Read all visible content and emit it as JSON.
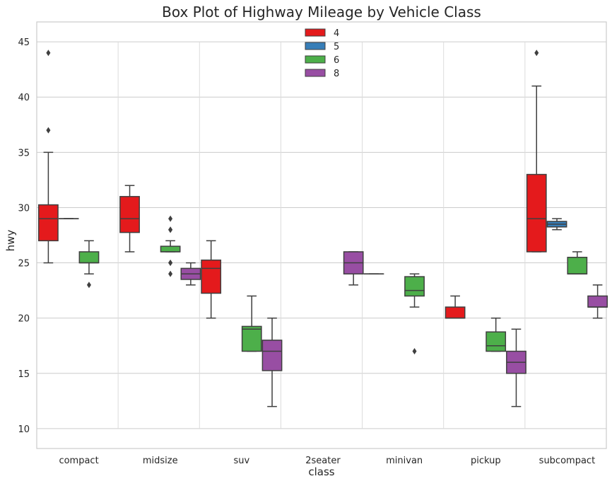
{
  "chart_data": {
    "type": "box",
    "title": "Box Plot of Highway Mileage by Vehicle Class",
    "xlabel": "class",
    "ylabel": "hwy",
    "ylim": [
      8.2,
      46.8
    ],
    "yticks": [
      10,
      15,
      20,
      25,
      30,
      35,
      40,
      45
    ],
    "grid": true,
    "legend_position": "top-center",
    "categories": [
      "compact",
      "midsize",
      "suv",
      "2seater",
      "minivan",
      "pickup",
      "subcompact"
    ],
    "series": [
      {
        "name": "4",
        "color": "#e41a1c",
        "boxes": [
          {
            "category": "compact",
            "whisker_low": 25,
            "q1": 27,
            "median": 29,
            "q3": 30.25,
            "whisker_high": 35,
            "outliers": [
              37,
              44
            ]
          },
          {
            "category": "midsize",
            "whisker_low": 26,
            "q1": 27.75,
            "median": 29,
            "q3": 31,
            "whisker_high": 32,
            "outliers": []
          },
          {
            "category": "suv",
            "whisker_low": 20,
            "q1": 22.25,
            "median": 24.5,
            "q3": 25.25,
            "whisker_high": 27,
            "outliers": []
          },
          {
            "category": "minivan",
            "whisker_low": 24,
            "q1": 24,
            "median": 24,
            "q3": 24,
            "whisker_high": 24,
            "outliers": []
          },
          {
            "category": "pickup",
            "whisker_low": 20,
            "q1": 20,
            "median": 20,
            "q3": 21,
            "whisker_high": 22,
            "outliers": []
          },
          {
            "category": "subcompact",
            "whisker_low": 26,
            "q1": 26,
            "median": 29,
            "q3": 33,
            "whisker_high": 41,
            "outliers": [
              44
            ]
          }
        ]
      },
      {
        "name": "5",
        "color": "#377eb8",
        "boxes": [
          {
            "category": "compact",
            "whisker_low": 29,
            "q1": 29,
            "median": 29,
            "q3": 29,
            "whisker_high": 29,
            "outliers": []
          },
          {
            "category": "subcompact",
            "whisker_low": 28,
            "q1": 28.25,
            "median": 28.5,
            "q3": 28.75,
            "whisker_high": 29,
            "outliers": []
          }
        ]
      },
      {
        "name": "6",
        "color": "#4daf4a",
        "boxes": [
          {
            "category": "compact",
            "whisker_low": 24,
            "q1": 25,
            "median": 25,
            "q3": 26,
            "whisker_high": 27,
            "outliers": [
              23
            ]
          },
          {
            "category": "midsize",
            "whisker_low": 26,
            "q1": 26,
            "median": 26,
            "q3": 26.5,
            "whisker_high": 27,
            "outliers": [
              24,
              25,
              25,
              28,
              28,
              29
            ]
          },
          {
            "category": "suv",
            "whisker_low": 17,
            "q1": 17,
            "median": 19,
            "q3": 19.25,
            "whisker_high": 22,
            "outliers": []
          },
          {
            "category": "minivan",
            "whisker_low": 21,
            "q1": 22,
            "median": 22.5,
            "q3": 23.75,
            "whisker_high": 24,
            "outliers": [
              17
            ]
          },
          {
            "category": "pickup",
            "whisker_low": 17,
            "q1": 17,
            "median": 17.5,
            "q3": 18.75,
            "whisker_high": 20,
            "outliers": []
          },
          {
            "category": "subcompact",
            "whisker_low": 24,
            "q1": 24,
            "median": 24,
            "q3": 25.5,
            "whisker_high": 26,
            "outliers": []
          }
        ]
      },
      {
        "name": "8",
        "color": "#984ea3",
        "boxes": [
          {
            "category": "midsize",
            "whisker_low": 23,
            "q1": 23.5,
            "median": 24,
            "q3": 24.5,
            "whisker_high": 25,
            "outliers": []
          },
          {
            "category": "suv",
            "whisker_low": 12,
            "q1": 15.25,
            "median": 17,
            "q3": 18,
            "whisker_high": 20,
            "outliers": []
          },
          {
            "category": "2seater",
            "whisker_low": 23,
            "q1": 24,
            "median": 25,
            "q3": 26,
            "whisker_high": 26,
            "outliers": []
          },
          {
            "category": "pickup",
            "whisker_low": 12,
            "q1": 15,
            "median": 16,
            "q3": 17,
            "whisker_high": 19,
            "outliers": []
          },
          {
            "category": "subcompact",
            "whisker_low": 20,
            "q1": 21,
            "median": 21,
            "q3": 22,
            "whisker_high": 23,
            "outliers": []
          }
        ]
      }
    ]
  }
}
